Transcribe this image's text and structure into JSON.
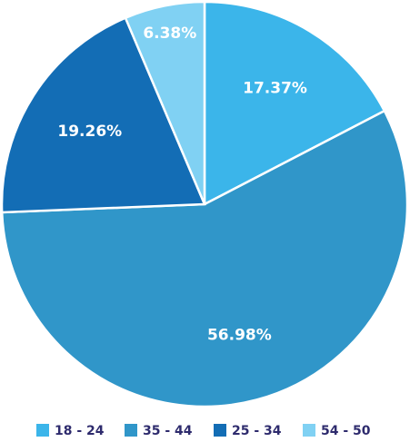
{
  "chart_data": {
    "type": "pie",
    "categories": [
      "18 - 24",
      "35 - 44",
      "25 - 34",
      "54 - 50"
    ],
    "values": [
      17.37,
      56.98,
      19.26,
      6.38
    ],
    "value_labels": [
      "17.37%",
      "56.98%",
      "19.26%",
      "6.38%"
    ],
    "colors": [
      "#3bb5ea",
      "#3096c9",
      "#136db5",
      "#80d1f3"
    ],
    "legend": "bottom"
  }
}
